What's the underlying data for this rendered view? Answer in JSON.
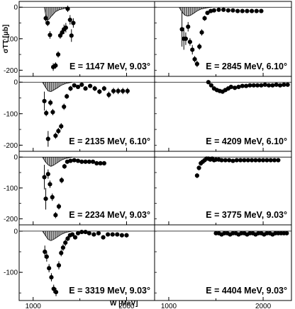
{
  "chart_data": {
    "type": "scatter",
    "xlabel": "W [MeV]",
    "ylabel": "σTT [μb]",
    "xlim": [
      850,
      2300
    ],
    "x_ticks": [
      "1000",
      "2000"
    ],
    "grid": false,
    "legend": "none",
    "panels": [
      {
        "label": "E = 1147 MeV, 9.03°",
        "ylim": [
          -215,
          5
        ],
        "y_ticks": [
          "-200",
          "-100",
          "0"
        ],
        "points": [
          [
            1135,
            -35,
            10
          ],
          [
            1155,
            -50,
            10
          ],
          [
            1180,
            -88,
            12
          ],
          [
            1215,
            -190,
            12
          ],
          [
            1240,
            -185,
            10
          ],
          [
            1268,
            -150,
            10
          ],
          [
            1290,
            -90,
            10
          ],
          [
            1310,
            -80,
            12
          ],
          [
            1330,
            -70,
            15
          ],
          [
            1350,
            -65,
            15
          ],
          [
            1370,
            -5,
            10
          ],
          [
            1395,
            -40,
            15
          ],
          [
            1410,
            -90,
            20
          ],
          [
            1430,
            -50,
            15
          ]
        ],
        "model": [
          [
            1120,
            0
          ],
          [
            1135,
            -25
          ],
          [
            1150,
            -40
          ],
          [
            1170,
            -38
          ],
          [
            1190,
            -30
          ],
          [
            1210,
            -24
          ],
          [
            1240,
            -14
          ],
          [
            1280,
            -8
          ],
          [
            1320,
            -5
          ],
          [
            1380,
            0
          ]
        ]
      },
      {
        "label": "E = 2845 MeV, 6.10°",
        "ylim": [
          -215,
          5
        ],
        "y_ticks": [],
        "points": [
          [
            1140,
            -70,
            55
          ],
          [
            1160,
            -100,
            35
          ],
          [
            1180,
            -100,
            20
          ],
          [
            1205,
            -62,
            15
          ],
          [
            1225,
            -110,
            12
          ],
          [
            1250,
            -135,
            15
          ],
          [
            1275,
            -165,
            10
          ],
          [
            1300,
            -180,
            10
          ],
          [
            1325,
            -125,
            10
          ],
          [
            1350,
            -80,
            10
          ],
          [
            1380,
            -35,
            8
          ],
          [
            1410,
            -18,
            6
          ],
          [
            1445,
            -12,
            5
          ],
          [
            1480,
            -10,
            5
          ],
          [
            1530,
            -8,
            5
          ],
          [
            1580,
            -8,
            5
          ],
          [
            1630,
            -10,
            5
          ],
          [
            1680,
            -10,
            5
          ],
          [
            1730,
            -12,
            5
          ],
          [
            1780,
            -12,
            5
          ],
          [
            1830,
            -12,
            5
          ],
          [
            1880,
            -12,
            5
          ],
          [
            1930,
            -12,
            5
          ],
          [
            1980,
            -12,
            5
          ]
        ],
        "model": [
          [
            1110,
            0
          ],
          [
            1140,
            -15
          ],
          [
            1170,
            -25
          ],
          [
            1200,
            -28
          ],
          [
            1230,
            -26
          ],
          [
            1260,
            -20
          ],
          [
            1300,
            -12
          ],
          [
            1340,
            -6
          ],
          [
            1400,
            -2
          ],
          [
            1460,
            0
          ]
        ]
      },
      {
        "label": "E = 2135 MeV, 6.10°",
        "ylim": [
          -215,
          5
        ],
        "y_ticks": [
          "-200",
          "-100",
          "0"
        ],
        "points": [
          [
            1120,
            -60,
            30
          ],
          [
            1140,
            -98,
            10
          ],
          [
            1160,
            -180,
            25
          ],
          [
            1185,
            -65,
            10
          ],
          [
            1210,
            -95,
            10
          ],
          [
            1240,
            -170,
            10
          ],
          [
            1270,
            -155,
            10
          ],
          [
            1300,
            -140,
            10
          ],
          [
            1330,
            -78,
            10
          ],
          [
            1360,
            -45,
            8
          ],
          [
            1400,
            -20,
            8
          ],
          [
            1440,
            -10,
            5
          ],
          [
            1480,
            -15,
            5
          ],
          [
            1520,
            -8,
            5
          ],
          [
            1560,
            -20,
            5
          ],
          [
            1610,
            -12,
            5
          ],
          [
            1660,
            -20,
            8
          ],
          [
            1710,
            -30,
            8
          ],
          [
            1760,
            -20,
            8
          ],
          [
            1810,
            -40,
            10
          ],
          [
            1860,
            -28,
            10
          ],
          [
            1910,
            -28,
            10
          ],
          [
            1960,
            -28,
            10
          ],
          [
            2010,
            -28,
            10
          ]
        ],
        "model": [
          [
            1100,
            0
          ],
          [
            1130,
            -15
          ],
          [
            1160,
            -28
          ],
          [
            1190,
            -30
          ],
          [
            1220,
            -25
          ],
          [
            1260,
            -18
          ],
          [
            1300,
            -10
          ],
          [
            1350,
            -4
          ],
          [
            1420,
            0
          ]
        ]
      },
      {
        "label": "E = 4209 MeV, 6.10°",
        "ylim": [
          -215,
          5
        ],
        "y_ticks": [],
        "points": [
          [
            1420,
            0,
            5
          ],
          [
            1450,
            -10,
            5
          ],
          [
            1480,
            -20,
            5
          ],
          [
            1510,
            -25,
            5
          ],
          [
            1540,
            -28,
            5
          ],
          [
            1570,
            -30,
            5
          ],
          [
            1600,
            -25,
            5
          ],
          [
            1630,
            -20,
            5
          ],
          [
            1660,
            -15,
            5
          ],
          [
            1700,
            -18,
            5
          ],
          [
            1740,
            -15,
            5
          ],
          [
            1780,
            -12,
            5
          ],
          [
            1820,
            -12,
            5
          ],
          [
            1860,
            -10,
            5
          ],
          [
            1900,
            -10,
            5
          ],
          [
            1940,
            -10,
            5
          ],
          [
            1980,
            -10,
            5
          ],
          [
            2020,
            -8,
            5
          ],
          [
            2060,
            -10,
            5
          ],
          [
            2100,
            -10,
            5
          ],
          [
            2140,
            -8,
            5
          ],
          [
            2180,
            -10,
            5
          ],
          [
            2220,
            -8,
            5
          ],
          [
            2260,
            -8,
            5
          ]
        ],
        "model": []
      },
      {
        "label": "E = 2234 MeV, 9.03°",
        "ylim": [
          -215,
          5
        ],
        "y_ticks": [
          "-200",
          "-100",
          "0"
        ],
        "points": [
          [
            1120,
            -65,
            40
          ],
          [
            1135,
            -135,
            35
          ],
          [
            1160,
            -55,
            15
          ],
          [
            1180,
            -88,
            12
          ],
          [
            1205,
            -130,
            12
          ],
          [
            1240,
            -188,
            10
          ],
          [
            1275,
            -160,
            10
          ],
          [
            1305,
            -75,
            10
          ],
          [
            1335,
            -30,
            8
          ],
          [
            1365,
            -15,
            6
          ],
          [
            1400,
            -12,
            5
          ],
          [
            1440,
            -10,
            5
          ],
          [
            1480,
            -12,
            5
          ],
          [
            1520,
            -15,
            5
          ],
          [
            1560,
            -15,
            5
          ],
          [
            1600,
            -15,
            5
          ],
          [
            1640,
            -15,
            5
          ],
          [
            1680,
            -20,
            5
          ],
          [
            1720,
            -20,
            5
          ],
          [
            1760,
            -20,
            5
          ]
        ],
        "model": [
          [
            1100,
            0
          ],
          [
            1130,
            -15
          ],
          [
            1160,
            -25
          ],
          [
            1190,
            -30
          ],
          [
            1220,
            -26
          ],
          [
            1260,
            -18
          ],
          [
            1300,
            -10
          ],
          [
            1350,
            -4
          ],
          [
            1420,
            0
          ]
        ]
      },
      {
        "label": "E = 3775 MeV, 9.03°",
        "ylim": [
          -215,
          5
        ],
        "y_ticks": [],
        "points": [
          [
            1300,
            -60,
            8
          ],
          [
            1320,
            -35,
            8
          ],
          [
            1340,
            -20,
            8
          ],
          [
            1360,
            -15,
            6
          ],
          [
            1380,
            -10,
            5
          ],
          [
            1400,
            -5,
            5
          ],
          [
            1420,
            -5,
            5
          ],
          [
            1440,
            -8,
            5
          ],
          [
            1460,
            -5,
            5
          ],
          [
            1480,
            -10,
            5
          ],
          [
            1500,
            -8,
            5
          ],
          [
            1530,
            -8,
            5
          ],
          [
            1560,
            -10,
            5
          ],
          [
            1600,
            -10,
            5
          ],
          [
            1640,
            -10,
            5
          ],
          [
            1680,
            -12,
            5
          ],
          [
            1720,
            -10,
            5
          ],
          [
            1760,
            -10,
            5
          ],
          [
            1800,
            -10,
            5
          ],
          [
            1840,
            -10,
            5
          ],
          [
            1880,
            -10,
            5
          ],
          [
            1920,
            -10,
            5
          ],
          [
            1960,
            -10,
            5
          ],
          [
            2000,
            -10,
            5
          ],
          [
            2040,
            -10,
            5
          ],
          [
            2080,
            -10,
            5
          ],
          [
            2120,
            -10,
            5
          ],
          [
            2160,
            -10,
            5
          ]
        ],
        "model": []
      },
      {
        "label": "E = 3319 MeV, 9.03°",
        "ylim": [
          -165,
          5
        ],
        "y_ticks": [
          "-100",
          "0"
        ],
        "points": [
          [
            1125,
            -50,
            15
          ],
          [
            1145,
            -62,
            12
          ],
          [
            1170,
            -90,
            10
          ],
          [
            1195,
            -112,
            10
          ],
          [
            1220,
            -140,
            10
          ],
          [
            1245,
            -148,
            10
          ],
          [
            1275,
            -83,
            10
          ],
          [
            1300,
            -53,
            8
          ],
          [
            1320,
            -40,
            8
          ],
          [
            1345,
            -28,
            8
          ],
          [
            1370,
            -18,
            6
          ],
          [
            1395,
            -10,
            5
          ],
          [
            1420,
            -8,
            5
          ],
          [
            1450,
            -15,
            5
          ],
          [
            1480,
            -5,
            5
          ],
          [
            1520,
            -2,
            5
          ],
          [
            1560,
            -2,
            5
          ],
          [
            1600,
            -5,
            5
          ],
          [
            1650,
            -8,
            5
          ],
          [
            1700,
            -5,
            5
          ],
          [
            1750,
            -15,
            5
          ],
          [
            1800,
            -8,
            5
          ],
          [
            1850,
            -8,
            5
          ],
          [
            1900,
            -8,
            5
          ],
          [
            1950,
            -10,
            5
          ],
          [
            2000,
            -10,
            5
          ]
        ],
        "model": [
          [
            1100,
            0
          ],
          [
            1130,
            -10
          ],
          [
            1160,
            -20
          ],
          [
            1190,
            -23
          ],
          [
            1220,
            -20
          ],
          [
            1260,
            -14
          ],
          [
            1300,
            -8
          ],
          [
            1350,
            -3
          ],
          [
            1420,
            0
          ]
        ]
      },
      {
        "label": "E = 4404 MeV, 9.03°",
        "ylim": [
          -165,
          5
        ],
        "y_ticks": [],
        "points": [
          [
            1500,
            -5,
            3
          ],
          [
            1530,
            -5,
            3
          ],
          [
            1560,
            -8,
            3
          ],
          [
            1590,
            -5,
            3
          ],
          [
            1620,
            -5,
            3
          ],
          [
            1650,
            -8,
            3
          ],
          [
            1680,
            -5,
            3
          ],
          [
            1710,
            -5,
            3
          ],
          [
            1740,
            -8,
            3
          ],
          [
            1770,
            -5,
            3
          ],
          [
            1800,
            -5,
            3
          ],
          [
            1830,
            -8,
            3
          ],
          [
            1860,
            -5,
            3
          ],
          [
            1890,
            -5,
            3
          ],
          [
            1920,
            -8,
            3
          ],
          [
            1950,
            -5,
            3
          ],
          [
            1980,
            -5,
            3
          ],
          [
            2010,
            -8,
            3
          ],
          [
            2040,
            -5,
            3
          ],
          [
            2070,
            -5,
            3
          ],
          [
            2100,
            -8,
            3
          ],
          [
            2130,
            -5,
            3
          ],
          [
            2160,
            -5,
            3
          ],
          [
            2190,
            -5,
            3
          ],
          [
            2220,
            -5,
            3
          ],
          [
            2250,
            -5,
            3
          ]
        ],
        "model": []
      }
    ]
  }
}
